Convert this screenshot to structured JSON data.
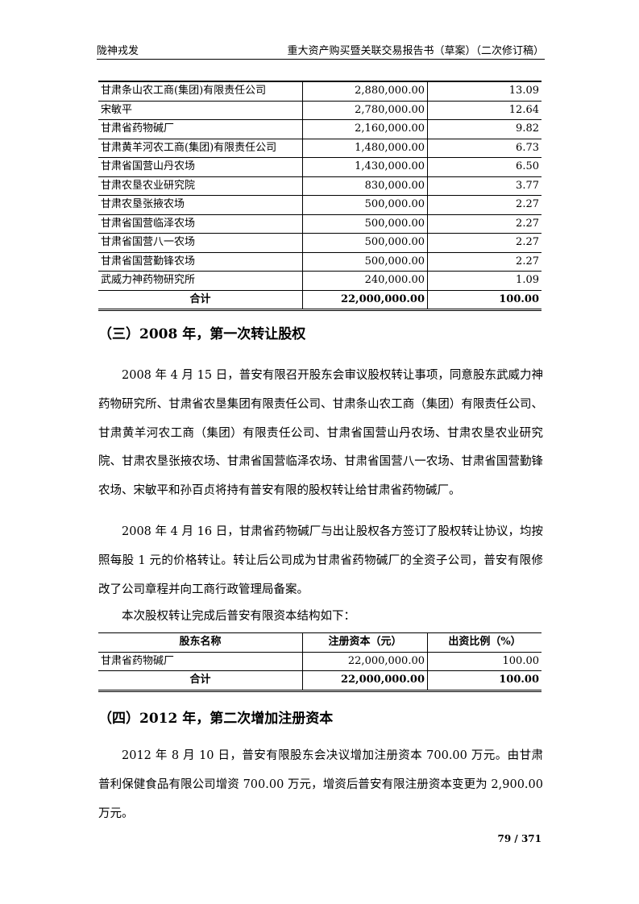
{
  "header": {
    "left": "陇神戎发",
    "right": "重大资产购买暨关联交易报告书（草案）（二次修订稿）"
  },
  "table1": {
    "rows": [
      [
        "甘肃条山农工商(集团)有限责任公司",
        "2,880,000.00",
        "13.09"
      ],
      [
        "宋敏平",
        "2,780,000.00",
        "12.64"
      ],
      [
        "甘肃省药物碱厂",
        "2,160,000.00",
        "9.82"
      ],
      [
        "甘肃黄羊河农工商(集团)有限责任公司",
        "1,480,000.00",
        "6.73"
      ],
      [
        "甘肃省国营山丹农场",
        "1,430,000.00",
        "6.50"
      ],
      [
        "甘肃农垦农业研究院",
        "830,000.00",
        "3.77"
      ],
      [
        "甘肃农垦张掖农场",
        "500,000.00",
        "2.27"
      ],
      [
        "甘肃省国营临泽农场",
        "500,000.00",
        "2.27"
      ],
      [
        "甘肃省国营八一农场",
        "500,000.00",
        "2.27"
      ],
      [
        "甘肃省国营勤锋农场",
        "500,000.00",
        "2.27"
      ],
      [
        "武威力神药物研究所",
        "240,000.00",
        "1.09"
      ]
    ],
    "total": [
      "合计",
      "22,000,000.00",
      "100.00"
    ]
  },
  "section3": {
    "heading": "（三）2008 年，第一次转让股权",
    "p1": "2008 年 4 月 15 日，普安有限召开股东会审议股权转让事项，同意股东武威力神药物研究所、甘肃省农垦集团有限责任公司、甘肃条山农工商（集团）有限责任公司、甘肃黄羊河农工商（集团）有限责任公司、甘肃省国营山丹农场、甘肃农垦农业研究院、甘肃农垦张掖农场、甘肃省国营临泽农场、甘肃省国营八一农场、甘肃省国营勤锋农场、宋敏平和孙百贞将持有普安有限的股权转让给甘肃省药物碱厂。",
    "p2": "2008 年 4 月 16 日，甘肃省药物碱厂与出让股权各方签订了股权转让协议，均按照每股 1 元的价格转让。转让后公司成为甘肃省药物碱厂的全资子公司，普安有限修改了公司章程并向工商行政管理局备案。",
    "p3": "本次股权转让完成后普安有限资本结构如下："
  },
  "table2": {
    "headers": [
      "股东名称",
      "注册资本（元）",
      "出资比例（%）"
    ],
    "rows": [
      [
        "甘肃省药物碱厂",
        "22,000,000.00",
        "100.00"
      ]
    ],
    "total": [
      "合计",
      "22,000,000.00",
      "100.00"
    ]
  },
  "section4": {
    "heading": "（四）2012 年，第二次增加注册资本",
    "p1": "2012 年 8 月 10 日，普安有限股东会决议增加注册资本 700.00 万元。由甘肃普利保健食品有限公司增资 700.00 万元，增资后普安有限注册资本变更为 2,900.00 万元。"
  },
  "page_number": "79 / 371"
}
